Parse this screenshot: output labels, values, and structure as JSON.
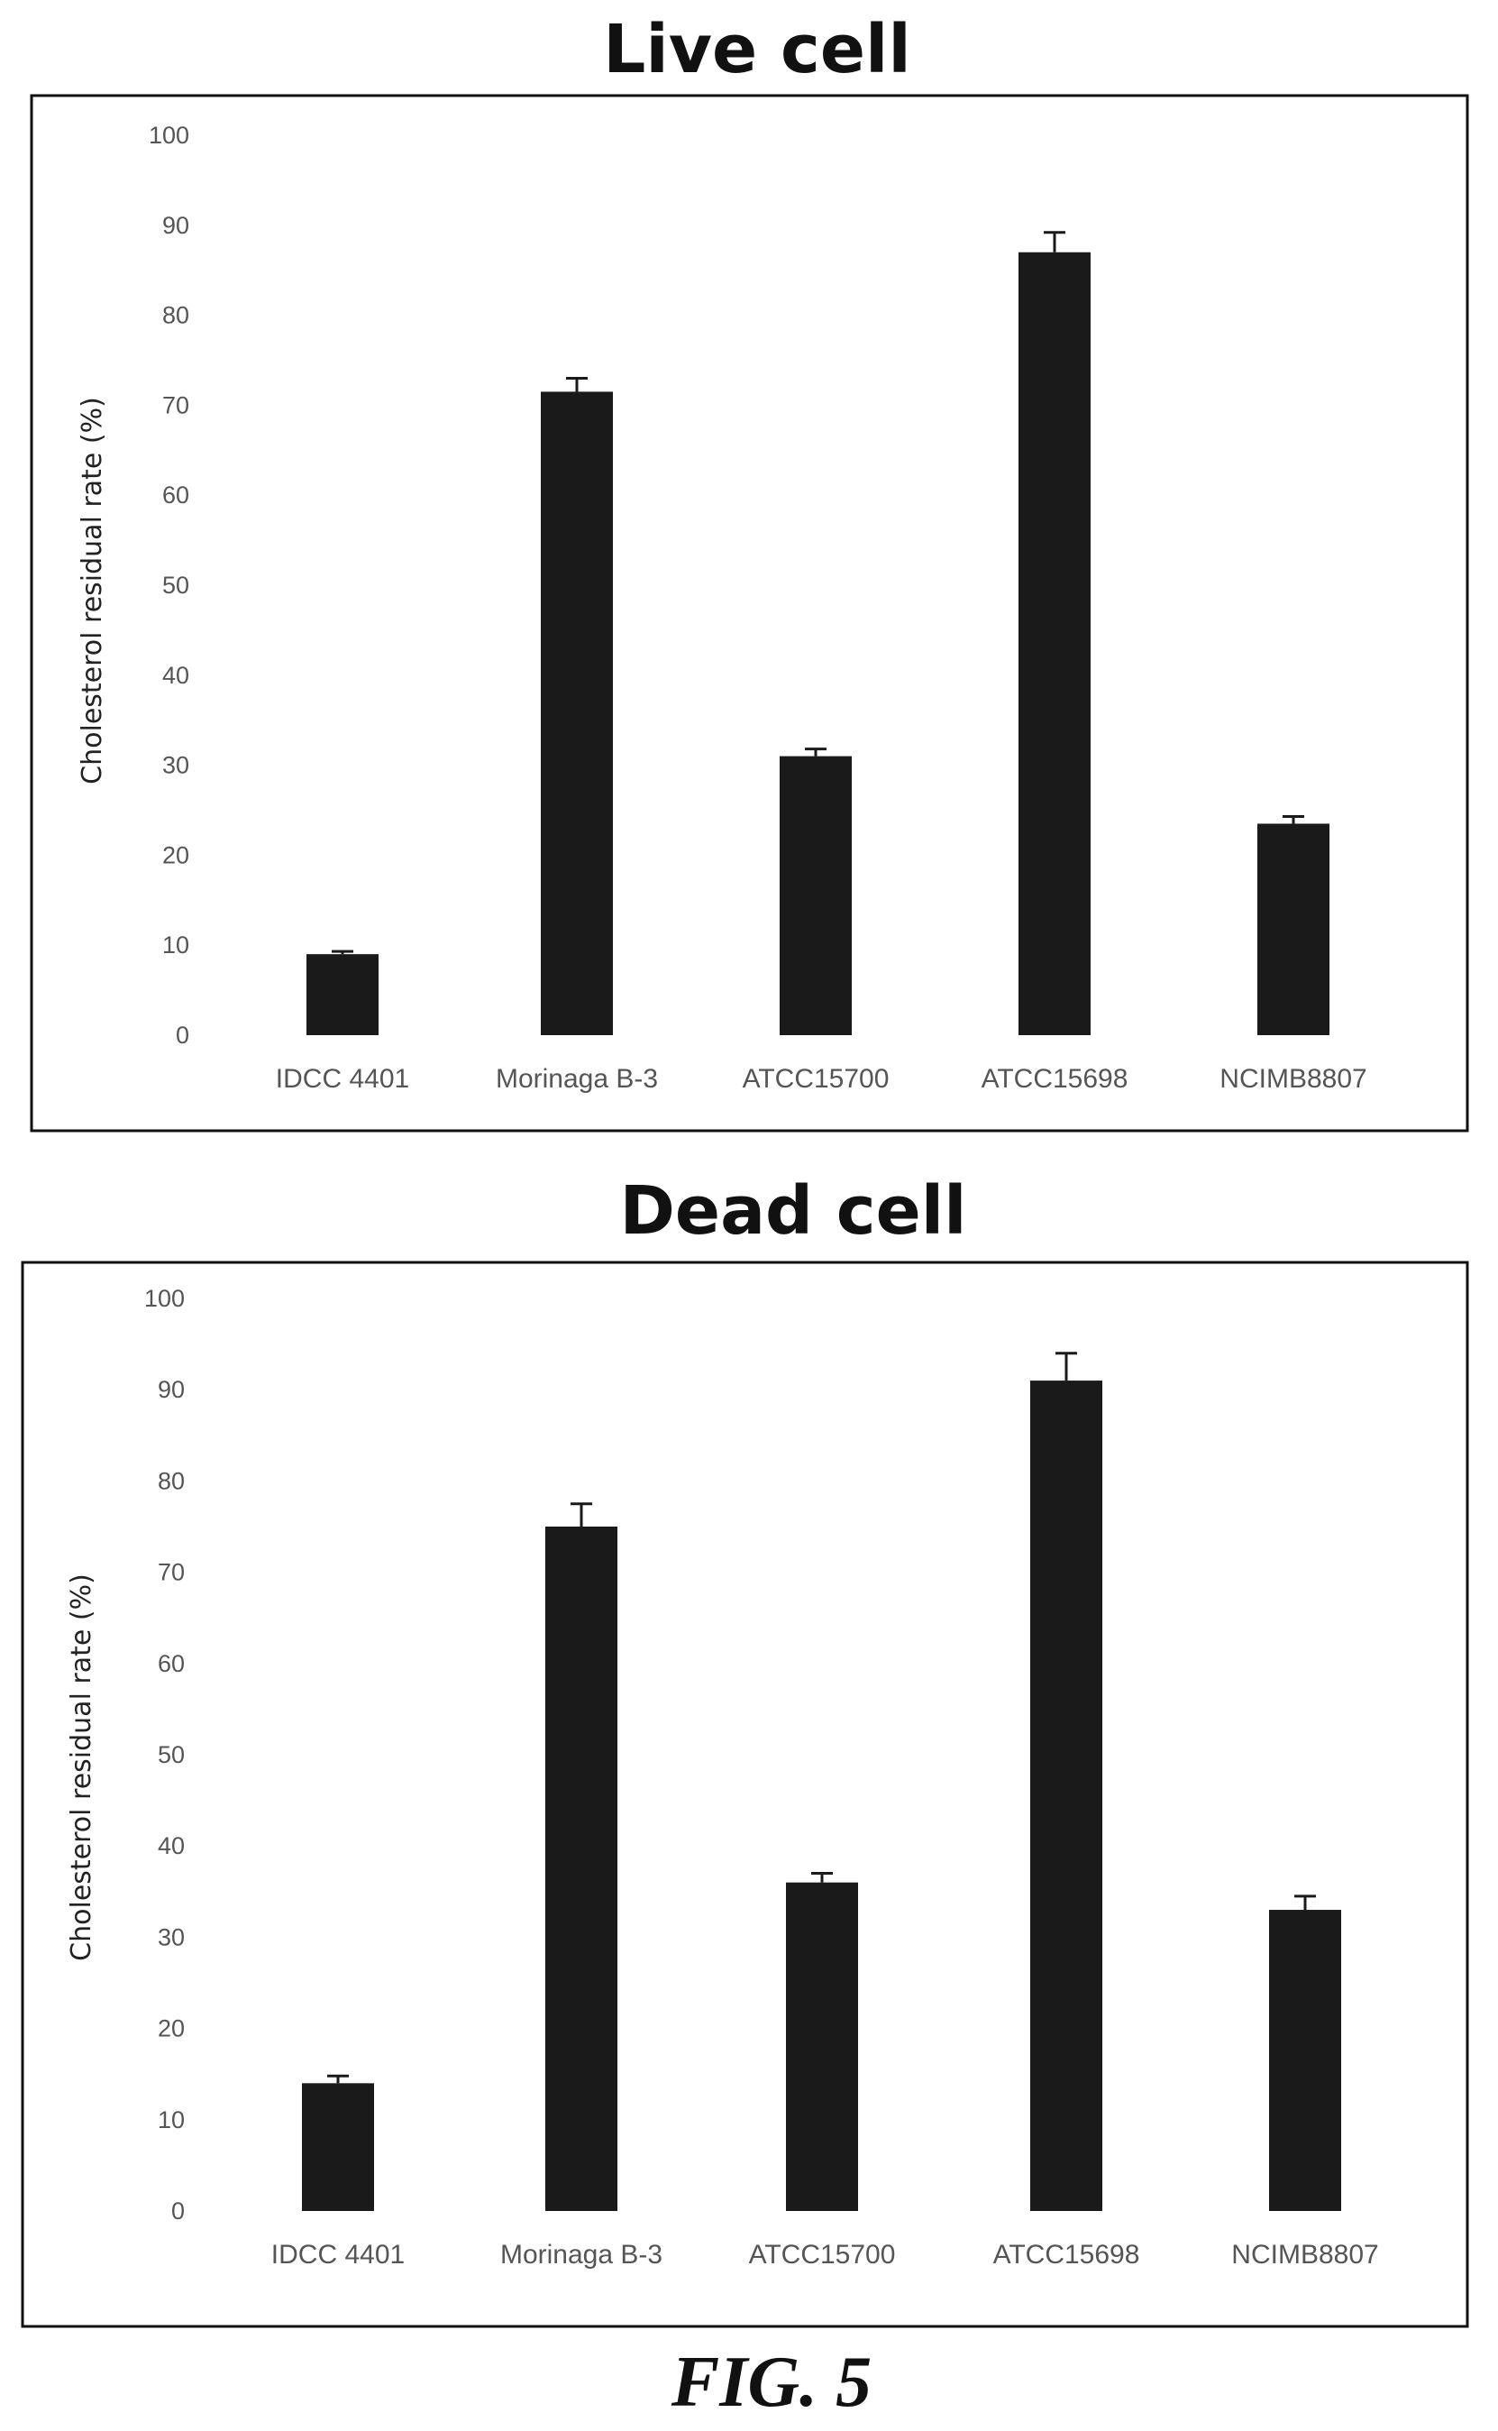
{
  "figure_caption": "FIG. 5",
  "colors": {
    "bar": "#1a1a1a",
    "frame": "#111111",
    "text": "#555555"
  },
  "chart_data": [
    {
      "type": "bar",
      "title": "Live cell",
      "xlabel": "",
      "ylabel": "Cholesterol residual rate (%)",
      "ylim": [
        0,
        100
      ],
      "yticks": [
        0,
        10,
        20,
        30,
        40,
        50,
        60,
        70,
        80,
        90,
        100
      ],
      "categories": [
        "IDCC 4401",
        "Morinaga B-3",
        "ATCC15700",
        "ATCC15698",
        "NCIMB8807"
      ],
      "values": [
        9,
        71.5,
        31,
        87,
        23.5
      ],
      "errors": [
        0.3,
        1.5,
        0.8,
        2.2,
        0.8
      ],
      "grid": false,
      "legend": "none"
    },
    {
      "type": "bar",
      "title": "Dead cell",
      "xlabel": "",
      "ylabel": "Cholesterol residual rate (%)",
      "ylim": [
        0,
        100
      ],
      "yticks": [
        0,
        10,
        20,
        30,
        40,
        50,
        60,
        70,
        80,
        90,
        100
      ],
      "categories": [
        "IDCC 4401",
        "Morinaga B-3",
        "ATCC15700",
        "ATCC15698",
        "NCIMB8807"
      ],
      "values": [
        14,
        75,
        36,
        91,
        33
      ],
      "errors": [
        0.8,
        2.5,
        1.0,
        3.0,
        1.5
      ],
      "grid": false,
      "legend": "none"
    }
  ]
}
